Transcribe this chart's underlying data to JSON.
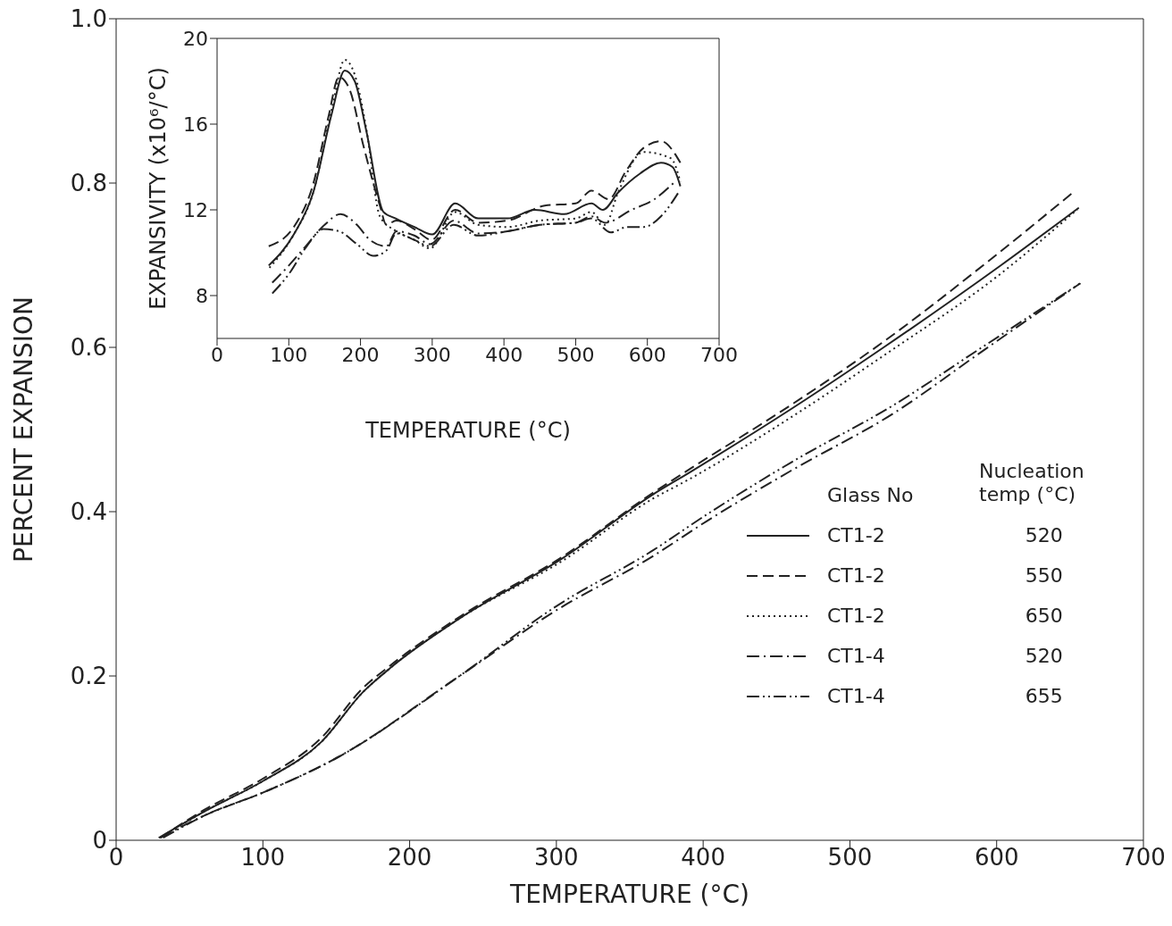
{
  "chart_data": [
    {
      "type": "line",
      "xlabel": "TEMPERATURE (°C)",
      "ylabel": "PERCENT EXPANSION",
      "xlim": [
        0,
        700
      ],
      "xticks": [
        0,
        100,
        200,
        300,
        400,
        500,
        600,
        700
      ],
      "ylim": [
        0,
        1.0
      ],
      "yticks": [
        0,
        0.2,
        0.4,
        0.6,
        0.8,
        {
          "value": 1.0,
          "label": "1.0"
        }
      ],
      "legend": "right",
      "legend_title": "Glass No",
      "annotations": [
        "Nucleation temp (°C)"
      ],
      "marker": "none",
      "series": [
        {
          "name": "CT1-2 520",
          "color": "#222222",
          "line_style": "solid",
          "x": [
            29,
            60,
            100,
            140,
            168,
            187,
            234,
            304,
            365,
            391,
            460,
            523,
            603,
            656
          ],
          "values": [
            0.003,
            0.035,
            0.072,
            0.12,
            0.18,
            0.21,
            0.27,
            0.343,
            0.42,
            0.448,
            0.525,
            0.6,
            0.7,
            0.77
          ]
        },
        {
          "name": "CT1-2 550",
          "color": "#222222",
          "line_style": "dashed",
          "x": [
            30,
            60,
            100,
            140,
            168,
            187,
            234,
            304,
            365,
            391,
            460,
            523,
            600,
            653
          ],
          "values": [
            0.003,
            0.037,
            0.075,
            0.125,
            0.185,
            0.213,
            0.272,
            0.345,
            0.422,
            0.452,
            0.53,
            0.607,
            0.713,
            0.79
          ]
        },
        {
          "name": "CT1-2 650",
          "color": "#222222",
          "line_style": "dotted",
          "x": [
            31,
            60,
            100,
            140,
            168,
            187,
            234,
            304,
            365,
            391,
            460,
            523,
            603,
            655
          ],
          "values": [
            0.004,
            0.035,
            0.072,
            0.12,
            0.18,
            0.21,
            0.27,
            0.34,
            0.415,
            0.44,
            0.515,
            0.59,
            0.69,
            0.768
          ]
        },
        {
          "name": "CT1-4 520",
          "color": "#222222",
          "line_style": "dashdot",
          "x": [
            30,
            60,
            100,
            150,
            234,
            300,
            365,
            402,
            460,
            530,
            590,
            657
          ],
          "values": [
            0.003,
            0.03,
            0.058,
            0.1,
            0.2,
            0.28,
            0.345,
            0.388,
            0.45,
            0.52,
            0.595,
            0.678
          ]
        },
        {
          "name": "CT1-4 655",
          "color": "#222222",
          "line_style": "dashdotdot",
          "x": [
            32,
            60,
            100,
            150,
            234,
            300,
            365,
            402,
            460,
            530,
            590,
            657
          ],
          "values": [
            0.003,
            0.03,
            0.058,
            0.1,
            0.2,
            0.285,
            0.352,
            0.396,
            0.46,
            0.53,
            0.6,
            0.678
          ]
        }
      ]
    },
    {
      "type": "line",
      "xlabel": "TEMPERATURE (°C)",
      "ylabel": "EXPANSIVITY (x10⁶/°C)",
      "xlim": [
        0,
        700
      ],
      "xticks": [
        0,
        100,
        200,
        300,
        400,
        500,
        600,
        700
      ],
      "ylim": [
        6,
        20
      ],
      "yticks": [
        8,
        12,
        16,
        20
      ],
      "marker": "none",
      "series": [
        {
          "color": "#222222",
          "line_style": "solid",
          "x": [
            72,
            107,
            134,
            160,
            178,
            192,
            208,
            232,
            249,
            275,
            300,
            332,
            364,
            405,
            443,
            484,
            522,
            538,
            559,
            590,
            619,
            635,
            646
          ],
          "values": [
            9.4,
            10.85,
            12.8,
            16.5,
            18.5,
            18.0,
            15.7,
            11.9,
            11.6,
            11.2,
            10.85,
            12.3,
            11.6,
            11.6,
            12.0,
            11.8,
            12.3,
            12.0,
            12.8,
            13.7,
            14.2,
            14.0,
            13.1
          ]
        },
        {
          "color": "#222222",
          "line_style": "dashed",
          "x": [
            72,
            107,
            134,
            155,
            170,
            185,
            204,
            227,
            236,
            250,
            275,
            299,
            332,
            364,
            405,
            457,
            500,
            522,
            546,
            570,
            595,
            619,
            646
          ],
          "values": [
            10.3,
            11.2,
            13.2,
            16.3,
            18.2,
            17.6,
            15.0,
            12.2,
            11.3,
            11.5,
            11.1,
            10.6,
            12.0,
            11.4,
            11.5,
            12.2,
            12.3,
            12.9,
            12.5,
            13.8,
            14.9,
            15.2,
            14.2
          ]
        },
        {
          "color": "#222222",
          "line_style": "dotted",
          "x": [
            73,
            107,
            134,
            160,
            178,
            192,
            208,
            227,
            250,
            275,
            297,
            332,
            364,
            405,
            450,
            500,
            522,
            541,
            559,
            595,
            633,
            646
          ],
          "values": [
            9.3,
            10.85,
            12.8,
            16.7,
            19.0,
            18.3,
            15.8,
            11.7,
            11.0,
            10.6,
            10.2,
            11.9,
            11.3,
            11.2,
            11.5,
            11.6,
            11.9,
            11.3,
            12.8,
            14.7,
            14.4,
            13.3
          ]
        },
        {
          "color": "#222222",
          "line_style": "dashdot",
          "x": [
            77,
            100,
            121,
            150,
            172,
            195,
            213,
            236,
            250,
            275,
            297,
            330,
            364,
            405,
            450,
            500,
            522,
            541,
            578,
            610,
            638
          ],
          "values": [
            8.6,
            9.4,
            10.2,
            11.3,
            11.8,
            11.3,
            10.6,
            10.3,
            11.0,
            10.8,
            10.4,
            11.5,
            10.9,
            11.0,
            11.3,
            11.4,
            11.7,
            11.4,
            12.0,
            12.5,
            13.3
          ]
        },
        {
          "color": "#222222",
          "line_style": "dashdotdot",
          "x": [
            77,
            100,
            125,
            148,
            170,
            195,
            218,
            236,
            250,
            275,
            297,
            330,
            364,
            405,
            450,
            500,
            522,
            549,
            572,
            595,
            619,
            645
          ],
          "values": [
            8.1,
            9.0,
            10.3,
            11.1,
            11.0,
            10.4,
            9.85,
            10.1,
            10.9,
            10.6,
            10.3,
            11.3,
            10.8,
            11.0,
            11.3,
            11.4,
            11.6,
            10.95,
            11.2,
            11.2,
            11.7,
            12.9
          ]
        }
      ]
    }
  ]
}
